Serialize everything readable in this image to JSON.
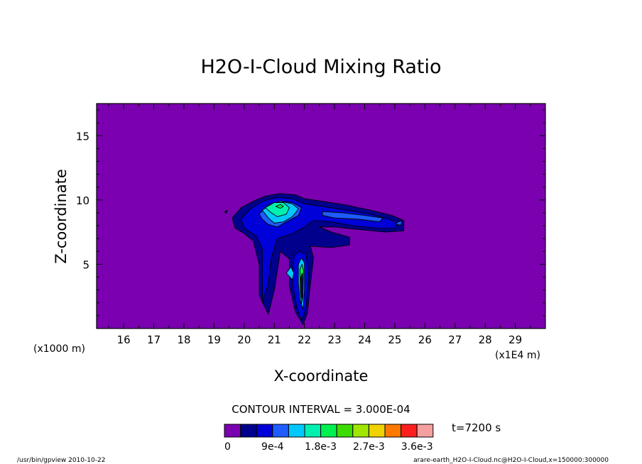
{
  "chart_data": {
    "type": "contour",
    "title": "H2O-I-Cloud Mixing Ratio",
    "xlabel": "X-coordinate",
    "ylabel": "Z-coordinate",
    "x_unit_left": "(x1000 m)",
    "x_unit_right": "(x1E4 m)",
    "x_ticks": [
      "16",
      "17",
      "18",
      "19",
      "20",
      "21",
      "22",
      "23",
      "24",
      "25",
      "26",
      "27",
      "28",
      "29"
    ],
    "y_ticks": [
      "5",
      "10",
      "15"
    ],
    "xlim": [
      15.1,
      30
    ],
    "ylim": [
      0,
      17.5
    ],
    "contour_interval_text": "CONTOUR INTERVAL = 3.000E-04",
    "time_text": "t=7200 s",
    "background_color": "#7a00b0",
    "colorbar": {
      "colors": [
        "#7a00b0",
        "#00008c",
        "#0000d8",
        "#1e5cff",
        "#00c8ff",
        "#00f0b0",
        "#00f050",
        "#3cdc00",
        "#a0e600",
        "#f0d200",
        "#ff7800",
        "#ff1e1e",
        "#f5a0a0"
      ],
      "labels": [
        "0",
        "9e-4",
        "1.8e-3",
        "2.7e-3",
        "3.6e-3"
      ]
    },
    "footer_left": "/usr/bin/gpview  2010-10-22",
    "footer_right": "arare-earth_H2O-I-Cloud.nc@H2O-I-Cloud,x=150000:300000"
  }
}
